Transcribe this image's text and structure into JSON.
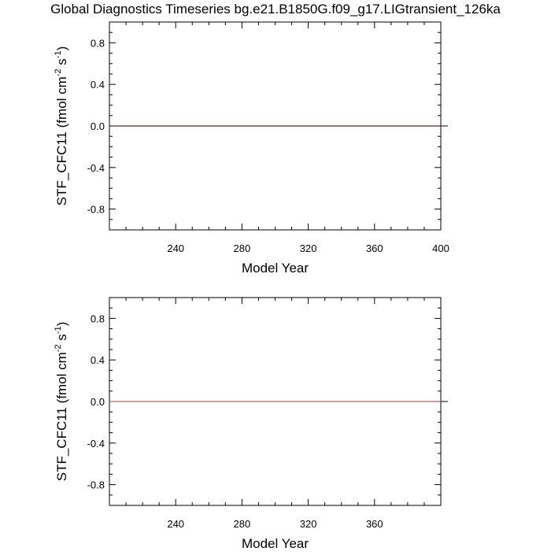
{
  "title": "Global Diagnostics Timeseries bg.e21.B1850G.f09_g17.LIGtransient_126ka",
  "chart_data": [
    {
      "type": "line",
      "xlabel": "Model Year",
      "ylabel_main": "STF_CFC11 (fmol cm",
      "ylabel_exp1": "-2",
      "ylabel_mid": " s",
      "ylabel_exp2": "-1",
      "ylabel_end": ")",
      "xlim": [
        200,
        400
      ],
      "ylim": [
        -1.0,
        1.0
      ],
      "xticks": [
        240,
        280,
        320,
        360,
        400
      ],
      "xtick_labels": [
        "240",
        "280",
        "320",
        "360",
        "400"
      ],
      "yticks": [
        0.8,
        0.4,
        0.0,
        -0.4,
        -0.8
      ],
      "ytick_labels": [
        "0.8",
        "0.4",
        "0.0",
        "-0.4",
        "-0.8"
      ],
      "series": [
        {
          "x": [
            200,
            400
          ],
          "y": [
            0.0,
            0.0
          ],
          "color": "#7a1e1e"
        }
      ]
    },
    {
      "type": "line",
      "xlabel": "Model Year",
      "ylabel_main": "STF_CFC11 (fmol cm",
      "ylabel_exp1": "-2",
      "ylabel_mid": " s",
      "ylabel_exp2": "-1",
      "ylabel_end": ")",
      "xlim": [
        200,
        400
      ],
      "ylim": [
        -1.0,
        1.0
      ],
      "xticks": [
        240,
        280,
        320,
        360
      ],
      "xtick_labels": [
        "240",
        "280",
        "320",
        "360"
      ],
      "yticks": [
        0.8,
        0.4,
        0.0,
        -0.4,
        -0.8
      ],
      "ytick_labels": [
        "0.8",
        "0.4",
        "0.0",
        "-0.4",
        "-0.8"
      ],
      "series": [
        {
          "x": [
            200,
            400
          ],
          "y": [
            0.0,
            0.0
          ],
          "color": "#c06060"
        }
      ]
    }
  ]
}
